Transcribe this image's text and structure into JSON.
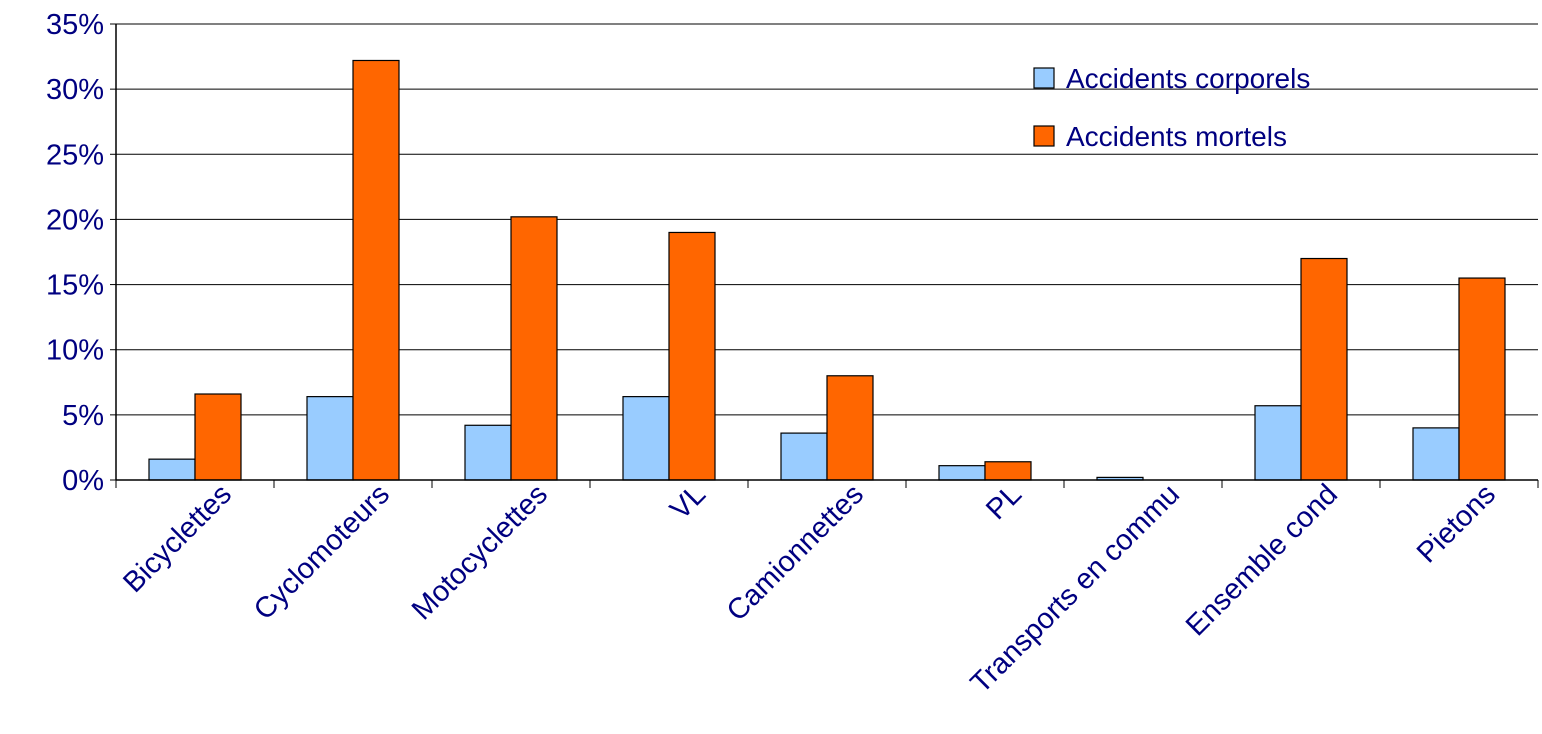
{
  "chart_data": {
    "type": "bar",
    "categories": [
      "Bicyclettes",
      "Cyclomoteurs",
      "Motocyclettes",
      "VL",
      "Camionnettes",
      "PL",
      "Transports en commu",
      "Ensemble cond",
      "Pietons"
    ],
    "series": [
      {
        "name": "Accidents corporels",
        "color": "#99CCFF",
        "values": [
          1.6,
          6.4,
          4.2,
          6.4,
          3.6,
          1.1,
          0.2,
          5.7,
          4.0
        ]
      },
      {
        "name": "Accidents mortels",
        "color": "#FF6600",
        "values": [
          6.6,
          32.2,
          20.2,
          19.0,
          8.0,
          1.4,
          0.0,
          17.0,
          15.5
        ]
      }
    ],
    "y_ticks": [
      "0%",
      "5%",
      "10%",
      "15%",
      "20%",
      "25%",
      "30%",
      "35%"
    ],
    "ylim": [
      0,
      35
    ],
    "y_step": 5,
    "grid": true,
    "legend_position": "top-right",
    "title": "",
    "xlabel": "",
    "ylabel": "",
    "text_color": "#000080"
  }
}
